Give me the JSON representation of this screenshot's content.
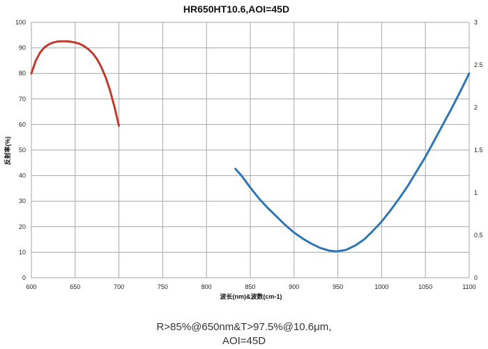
{
  "chart_data": {
    "type": "line",
    "title": "HR650HT10.6,AOI=45D",
    "xlabel": "波长(nm)&波数(cm-1)",
    "ylabel": "反射率(%)",
    "xlim": [
      600,
      1100
    ],
    "ylim": [
      0,
      100
    ],
    "y2lim": [
      0,
      3
    ],
    "xticks": [
      600,
      650,
      700,
      750,
      800,
      850,
      900,
      950,
      1000,
      1050,
      1100
    ],
    "yticks": [
      0,
      10,
      20,
      30,
      40,
      50,
      60,
      70,
      80,
      90,
      100
    ],
    "y2ticks": [
      0,
      0.5,
      1,
      1.5,
      2,
      2.5,
      3
    ],
    "grid": true,
    "series": [
      {
        "axis": "left",
        "color": "#C0392B",
        "x": [
          600,
          605,
          610,
          615,
          620,
          625,
          630,
          635,
          640,
          645,
          650,
          655,
          660,
          665,
          670,
          675,
          680,
          685,
          690,
          695,
          700
        ],
        "y": [
          80,
          85,
          88.2,
          90.2,
          91.4,
          92.1,
          92.5,
          92.6,
          92.6,
          92.4,
          92.1,
          91.6,
          90.7,
          89.5,
          87.9,
          85.6,
          82.4,
          78.3,
          73.2,
          66.8,
          59.5
        ]
      },
      {
        "axis": "right",
        "color": "#2E75B6",
        "x": [
          833,
          840,
          850,
          860,
          870,
          880,
          890,
          900,
          910,
          920,
          930,
          940,
          948,
          955,
          960,
          970,
          980,
          990,
          1000,
          1010,
          1020,
          1030,
          1040,
          1050,
          1060,
          1070,
          1080,
          1090,
          1100
        ],
        "y": [
          1.28,
          1.2,
          1.06,
          0.93,
          0.82,
          0.72,
          0.62,
          0.53,
          0.46,
          0.4,
          0.35,
          0.32,
          0.31,
          0.32,
          0.33,
          0.38,
          0.45,
          0.55,
          0.66,
          0.79,
          0.93,
          1.08,
          1.25,
          1.42,
          1.61,
          1.8,
          1.99,
          2.19,
          2.4
        ]
      }
    ]
  },
  "caption": {
    "line1": "R>85%@650nm&T>97.5%@10.6μm,",
    "line2": "AOI=45D"
  }
}
